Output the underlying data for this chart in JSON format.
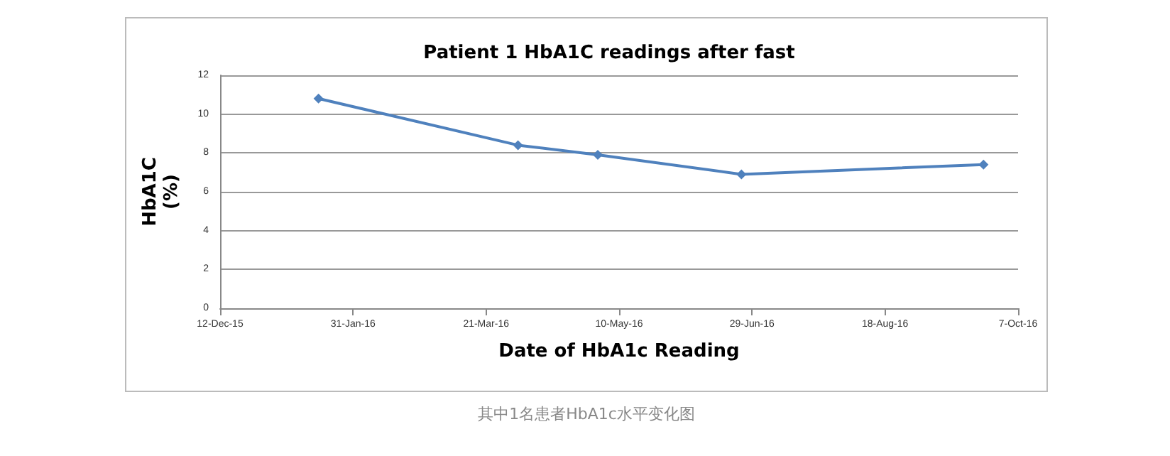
{
  "chart_data": {
    "type": "line",
    "title": "Patient 1 HbA1C readings after fast",
    "xlabel": "Date of HbA1c Reading",
    "ylabel": "HbA1C\n(%)",
    "x": [
      "2016-01-18",
      "2016-04-02",
      "2016-05-02",
      "2016-06-25",
      "2016-09-24"
    ],
    "series": [
      {
        "color": "#4f81bd",
        "values": [
          10.8,
          8.4,
          7.9,
          6.9,
          7.4
        ]
      }
    ],
    "xlim": [
      "2015-12-12",
      "2016-10-07"
    ],
    "xticks": [
      {
        "value": "2015-12-12",
        "label": "12-Dec-15"
      },
      {
        "value": "2016-01-31",
        "label": "31-Jan-16"
      },
      {
        "value": "2016-03-21",
        "label": "21-Mar-16"
      },
      {
        "value": "2016-05-10",
        "label": "10-May-16"
      },
      {
        "value": "2016-06-29",
        "label": "29-Jun-16"
      },
      {
        "value": "2016-08-18",
        "label": "18-Aug-16"
      },
      {
        "value": "2016-10-07",
        "label": "7-Oct-16"
      }
    ],
    "ylim": [
      0,
      12
    ],
    "yticks": [
      0,
      2,
      4,
      6,
      8,
      10,
      12
    ],
    "grid": "y",
    "marker": "diamond",
    "line_style": "solid",
    "annotations": [
      "其中1名患者HbA1c水平变化图"
    ]
  }
}
